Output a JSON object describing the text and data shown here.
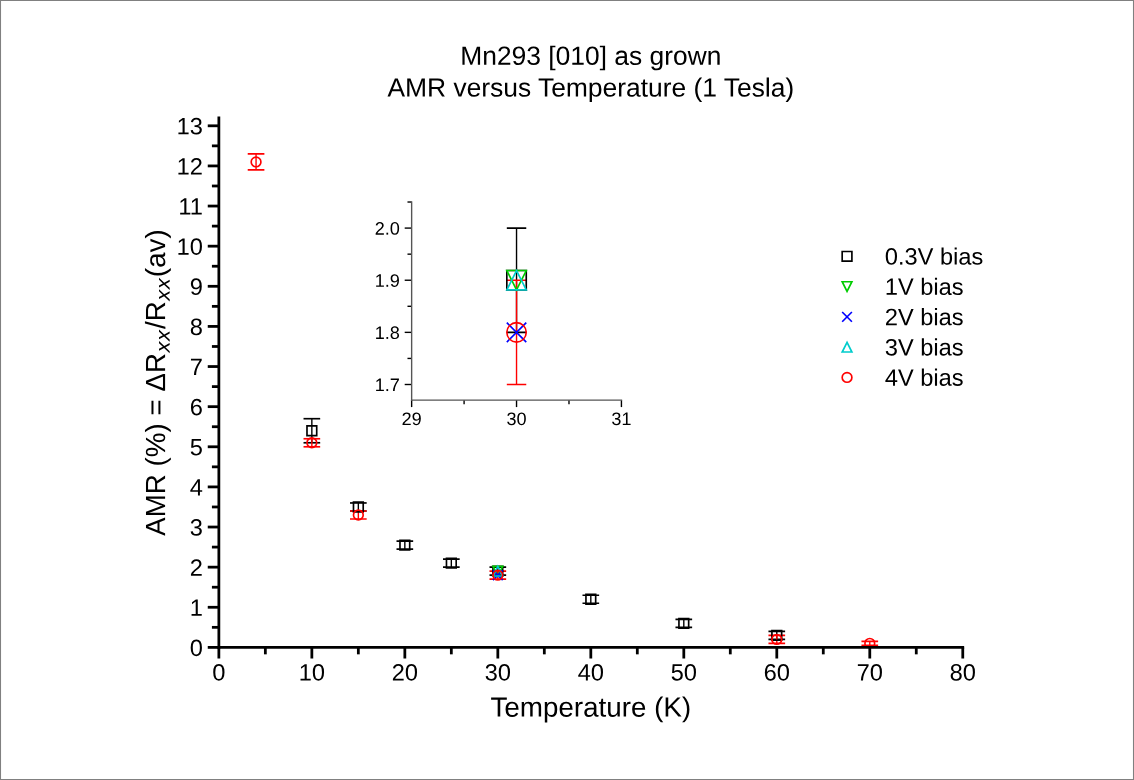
{
  "chart_data": [
    {
      "type": "scatter",
      "title": "Mn293 [010] as grown",
      "subtitle": "AMR versus Temperature (1 Tesla)",
      "xlabel": "Temperature (K)",
      "ylabel": "AMR (%) = ΔR$_{xx}$/R$_{xx}$(av)",
      "xlim": [
        0,
        80
      ],
      "xticks": [
        0,
        10,
        20,
        30,
        40,
        50,
        60,
        70,
        80
      ],
      "ylim": [
        0,
        13.2
      ],
      "yticks": [
        0,
        1,
        2,
        3,
        4,
        5,
        6,
        7,
        8,
        9,
        10,
        11,
        12,
        13
      ],
      "grid": false,
      "legend": "right",
      "series": [
        {
          "name": "0.3V bias",
          "color": "#000000",
          "marker": "square",
          "x": [
            10,
            15,
            20,
            25,
            30,
            40,
            50,
            60
          ],
          "values": [
            5.4,
            3.5,
            2.55,
            2.1,
            1.9,
            1.2,
            0.6,
            0.3
          ],
          "errors": [
            0.3,
            0.1,
            0.1,
            0.1,
            0.1,
            0.1,
            0.1,
            0.1
          ]
        },
        {
          "name": "1V bias",
          "color": "#00cc00",
          "marker": "triangle_down",
          "x": [
            30
          ],
          "values": [
            1.9
          ]
        },
        {
          "name": "2V bias",
          "color": "#0000ff",
          "marker": "cross",
          "x": [
            30
          ],
          "values": [
            1.8
          ]
        },
        {
          "name": "3V bias",
          "color": "#00cccc",
          "marker": "triangle",
          "x": [
            30
          ],
          "values": [
            1.9
          ]
        },
        {
          "name": "4V bias",
          "color": "#ff0000",
          "marker": "circle",
          "x": [
            4,
            10,
            15,
            30,
            60,
            70
          ],
          "values": [
            12.1,
            5.1,
            3.3,
            1.8,
            0.2,
            0.1
          ],
          "errors": [
            0.2,
            0.1,
            0.1,
            0.1,
            0.1,
            0.05
          ]
        }
      ]
    },
    {
      "type": "scatter",
      "xlim": [
        29,
        31
      ],
      "xticks": [
        29,
        30,
        31
      ],
      "ylim": [
        1.67,
        2.05
      ],
      "yticks": [
        {
          "value": 1.7,
          "label": "1.7"
        },
        {
          "value": 1.8,
          "label": "1.8"
        },
        {
          "value": 1.9,
          "label": "1.9"
        },
        {
          "value": 2.0,
          "label": "2.0"
        }
      ],
      "grid": false,
      "legend": false,
      "series": [
        {
          "color": "#000000",
          "marker": "square",
          "x": [
            30
          ],
          "values": [
            1.9
          ],
          "errors": [
            0.1
          ]
        },
        {
          "color": "#00cc00",
          "marker": "triangle_down",
          "x": [
            30
          ],
          "values": [
            1.9
          ]
        },
        {
          "color": "#0000ff",
          "marker": "cross",
          "x": [
            30
          ],
          "values": [
            1.8
          ]
        },
        {
          "color": "#00cccc",
          "marker": "triangle",
          "x": [
            30
          ],
          "values": [
            1.9
          ]
        },
        {
          "color": "#ff0000",
          "marker": "circle",
          "x": [
            30
          ],
          "values": [
            1.8
          ],
          "errors": [
            0.1
          ]
        }
      ]
    }
  ]
}
